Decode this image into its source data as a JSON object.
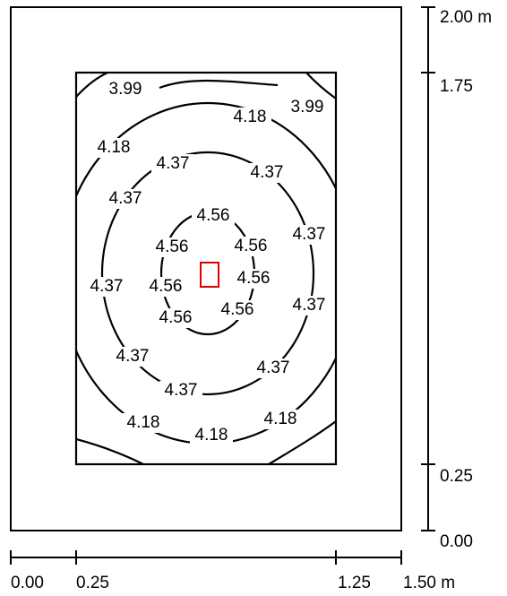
{
  "scale_y": {
    "labels": [
      "2.00 m",
      "1.75",
      "0.25",
      "0.00"
    ]
  },
  "scale_x": {
    "labels": [
      "0.00",
      "0.25",
      "1.25",
      "1.50 m"
    ]
  },
  "contour_labels": [
    "3.99",
    "3.99",
    "4.18",
    "4.18",
    "4.37",
    "4.37",
    "4.37",
    "4.56",
    "4.56",
    "4.56",
    "4.37",
    "4.56",
    "4.56",
    "4.37",
    "4.56",
    "4.56",
    "4.37",
    "4.37",
    "4.37",
    "4.37",
    "4.18",
    "4.18",
    "4.18"
  ]
}
